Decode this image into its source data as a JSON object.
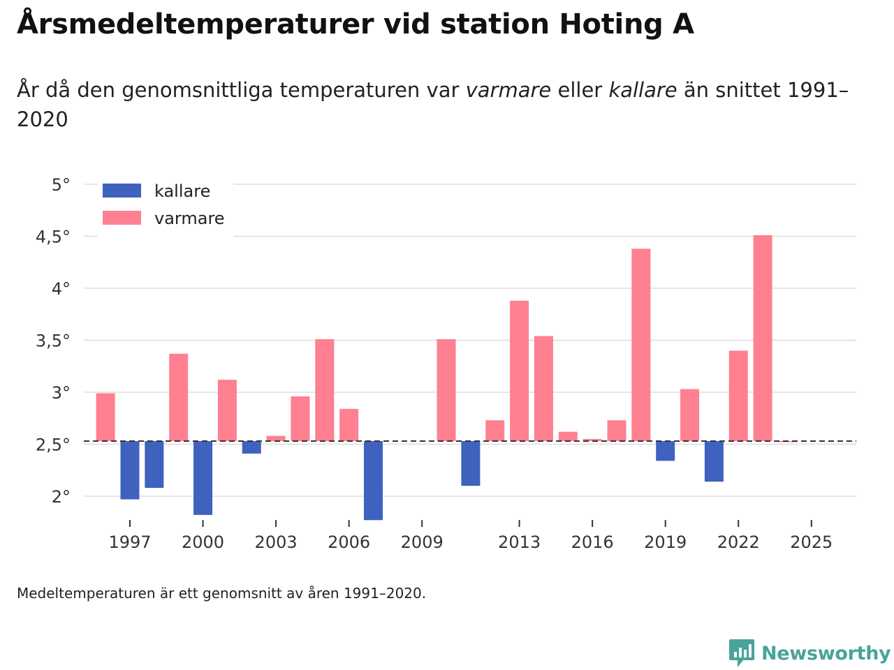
{
  "title": "Årsmedeltemperaturer vid station Hoting A",
  "subtitle": {
    "part1": "År då den genomsnittliga temperaturen var ",
    "warmer": "varmare",
    "part2": " eller ",
    "colder": "kallare",
    "part3": " än snittet 1991–2020"
  },
  "source": "Medeltemperaturen är ett genomsnitt av åren 1991–2020.",
  "brand": {
    "name": "Newsworthy",
    "color": "#4aa39a",
    "icon": "newsworthy-logo-icon"
  },
  "colors": {
    "kallare": "#3f62bf",
    "varmare": "#ff8090",
    "grid": "#dddddd",
    "baseline": "#333333"
  },
  "chart_data": {
    "type": "bar",
    "title": "Årsmedeltemperaturer vid station Hoting A",
    "xlabel": "",
    "ylabel": "",
    "baseline": 2.53,
    "ylim": [
      1.75,
      5.0
    ],
    "yticks": [
      2,
      2.5,
      3,
      3.5,
      4,
      4.5,
      5
    ],
    "ytick_labels": [
      "2°",
      "2,5°",
      "3°",
      "3,5°",
      "4°",
      "4,5°",
      "5°"
    ],
    "xlim": [
      1996,
      2026
    ],
    "xticks": [
      1997,
      2000,
      2003,
      2006,
      2009,
      2013,
      2016,
      2019,
      2022,
      2025
    ],
    "xtick_labels": [
      "1997",
      "2000",
      "2003",
      "2006",
      "2009",
      "2013",
      "2016",
      "2019",
      "2022",
      "2025"
    ],
    "legend": {
      "position": "top-left",
      "items": [
        {
          "key": "kallare",
          "label": "kallare"
        },
        {
          "key": "varmare",
          "label": "varmare"
        }
      ]
    },
    "years": [
      1996,
      1997,
      1998,
      1999,
      2000,
      2001,
      2002,
      2003,
      2004,
      2005,
      2006,
      2007,
      2010,
      2011,
      2012,
      2013,
      2014,
      2015,
      2016,
      2017,
      2018,
      2019,
      2020,
      2021,
      2022,
      2023,
      2024
    ],
    "values": [
      2.99,
      1.97,
      2.08,
      3.37,
      1.82,
      3.12,
      2.41,
      2.58,
      2.96,
      3.51,
      2.84,
      1.77,
      3.51,
      2.1,
      2.73,
      3.88,
      3.54,
      2.62,
      2.55,
      2.73,
      4.38,
      2.34,
      3.03,
      2.14,
      3.4,
      4.51,
      2.53
    ]
  }
}
